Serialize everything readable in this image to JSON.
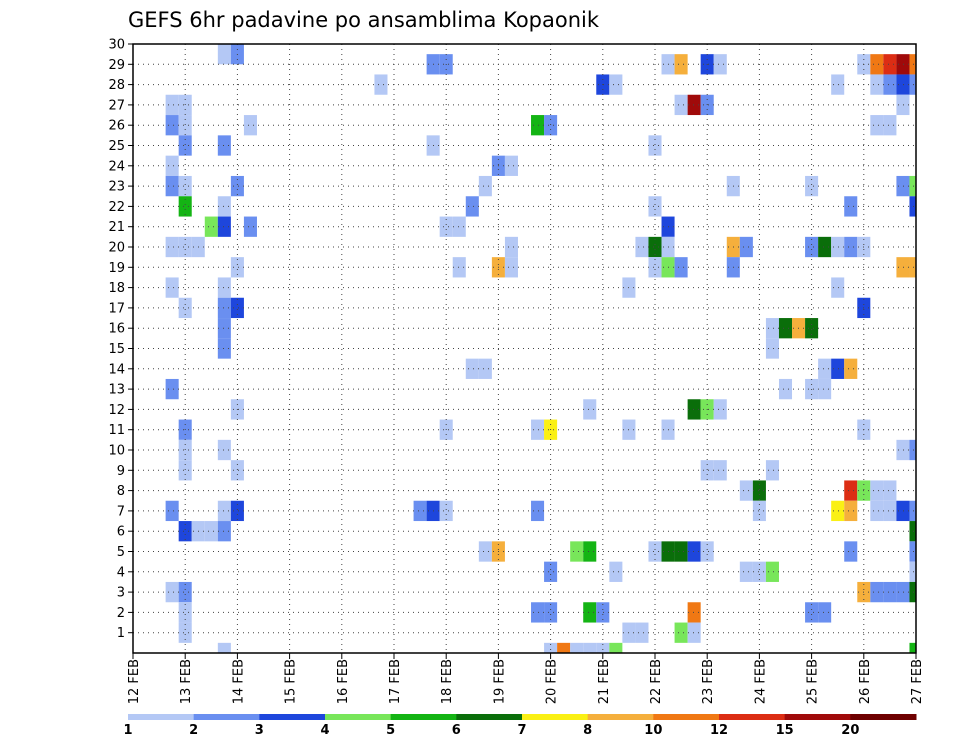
{
  "chart_data": {
    "type": "heatmap",
    "title": "GEFS 6hr padavine po ansamblima Kopaonik",
    "xlabel": "",
    "ylabel": "",
    "x_tick_labels": [
      "12 FEB",
      "13 FEB",
      "14 FEB",
      "15 FEB",
      "16 FEB",
      "17 FEB",
      "18 FEB",
      "19 FEB",
      "20 FEB",
      "21 FEB",
      "22 FEB",
      "23 FEB",
      "24 FEB",
      "25 FEB",
      "26 FEB",
      "27 FEB"
    ],
    "x_range_days": [
      12,
      27
    ],
    "y_tick_labels": [
      "1",
      "2",
      "3",
      "4",
      "5",
      "6",
      "7",
      "8",
      "9",
      "10",
      "11",
      "12",
      "13",
      "14",
      "15",
      "16",
      "17",
      "18",
      "19",
      "20",
      "21",
      "22",
      "23",
      "24",
      "25",
      "26",
      "27",
      "28",
      "29",
      "30"
    ],
    "y_range": [
      0,
      30
    ],
    "grid": true,
    "legend": {
      "placement": "bottom",
      "thresholds": [
        "1",
        "2",
        "3",
        "4",
        "5",
        "6",
        "7",
        "8",
        "10",
        "12",
        "15",
        "20"
      ],
      "colors": [
        "#b4c8f5",
        "#6a8ff0",
        "#1e46dc",
        "#78e65a",
        "#14b414",
        "#0a6e0a",
        "#faf014",
        "#f5af3c",
        "#f07814",
        "#dc2d14",
        "#a00a0a",
        "#6e0000"
      ]
    },
    "cells_description": "x = day of February (6-hour steps), y = ensemble member, level = legend color index (0 = 1-2 mm ... 11 = >20 mm)",
    "cells": [
      [
        13.75,
        30,
        0
      ],
      [
        14.0,
        30,
        1
      ],
      [
        17.75,
        29,
        1
      ],
      [
        18.0,
        29,
        1
      ],
      [
        22.25,
        29,
        0
      ],
      [
        22.5,
        29,
        7
      ],
      [
        23.0,
        29,
        2
      ],
      [
        23.25,
        29,
        0
      ],
      [
        26.0,
        29,
        0
      ],
      [
        26.25,
        29,
        8
      ],
      [
        26.5,
        29,
        9
      ],
      [
        26.75,
        29,
        10
      ],
      [
        27.0,
        29,
        8
      ],
      [
        16.75,
        28,
        0
      ],
      [
        21.0,
        28,
        2
      ],
      [
        21.25,
        28,
        0
      ],
      [
        25.5,
        28,
        0
      ],
      [
        26.25,
        28,
        0
      ],
      [
        26.5,
        28,
        1
      ],
      [
        26.75,
        28,
        2
      ],
      [
        27.0,
        28,
        1
      ],
      [
        12.75,
        27,
        0
      ],
      [
        13.0,
        27,
        0
      ],
      [
        22.5,
        27,
        0
      ],
      [
        22.75,
        27,
        10
      ],
      [
        23.0,
        27,
        1
      ],
      [
        26.75,
        27,
        0
      ],
      [
        12.75,
        26,
        1
      ],
      [
        13.0,
        26,
        0
      ],
      [
        14.25,
        26,
        0
      ],
      [
        19.75,
        26,
        4
      ],
      [
        20.0,
        26,
        1
      ],
      [
        26.25,
        26,
        0
      ],
      [
        26.5,
        26,
        0
      ],
      [
        13.0,
        25,
        1
      ],
      [
        13.75,
        25,
        1
      ],
      [
        17.75,
        25,
        0
      ],
      [
        22.0,
        25,
        0
      ],
      [
        12.75,
        24,
        0
      ],
      [
        19.0,
        24,
        1
      ],
      [
        19.25,
        24,
        0
      ],
      [
        12.75,
        23,
        1
      ],
      [
        13.0,
        23,
        0
      ],
      [
        14.0,
        23,
        1
      ],
      [
        18.75,
        23,
        0
      ],
      [
        23.5,
        23,
        0
      ],
      [
        25.0,
        23,
        0
      ],
      [
        26.75,
        23,
        1
      ],
      [
        27.0,
        23,
        3
      ],
      [
        13.0,
        22,
        4
      ],
      [
        13.75,
        22,
        0
      ],
      [
        18.5,
        22,
        1
      ],
      [
        22.0,
        22,
        0
      ],
      [
        25.75,
        22,
        1
      ],
      [
        27.0,
        22,
        2
      ],
      [
        13.5,
        21,
        3
      ],
      [
        13.75,
        21,
        2
      ],
      [
        14.25,
        21,
        1
      ],
      [
        18.0,
        21,
        0
      ],
      [
        18.25,
        21,
        0
      ],
      [
        22.25,
        21,
        2
      ],
      [
        12.75,
        20,
        0
      ],
      [
        13.0,
        20,
        0
      ],
      [
        13.25,
        20,
        0
      ],
      [
        19.25,
        20,
        0
      ],
      [
        21.75,
        20,
        0
      ],
      [
        22.0,
        20,
        5
      ],
      [
        22.25,
        20,
        0
      ],
      [
        23.5,
        20,
        7
      ],
      [
        23.75,
        20,
        1
      ],
      [
        25.0,
        20,
        1
      ],
      [
        25.25,
        20,
        5
      ],
      [
        25.5,
        20,
        0
      ],
      [
        25.75,
        20,
        1
      ],
      [
        26.0,
        20,
        0
      ],
      [
        14.0,
        19,
        0
      ],
      [
        18.25,
        19,
        0
      ],
      [
        19.0,
        19,
        7
      ],
      [
        19.25,
        19,
        0
      ],
      [
        22.0,
        19,
        0
      ],
      [
        22.25,
        19,
        3
      ],
      [
        22.5,
        19,
        1
      ],
      [
        23.5,
        19,
        1
      ],
      [
        26.75,
        19,
        7
      ],
      [
        27.0,
        19,
        7
      ],
      [
        12.75,
        18,
        0
      ],
      [
        13.75,
        18,
        0
      ],
      [
        21.5,
        18,
        0
      ],
      [
        25.5,
        18,
        0
      ],
      [
        13.0,
        17,
        0
      ],
      [
        13.75,
        17,
        1
      ],
      [
        14.0,
        17,
        2
      ],
      [
        26.0,
        17,
        2
      ],
      [
        13.75,
        16,
        1
      ],
      [
        24.25,
        16,
        0
      ],
      [
        24.5,
        16,
        5
      ],
      [
        24.75,
        16,
        7
      ],
      [
        25.0,
        16,
        5
      ],
      [
        13.75,
        15,
        1
      ],
      [
        24.25,
        15,
        0
      ],
      [
        18.5,
        14,
        0
      ],
      [
        18.75,
        14,
        0
      ],
      [
        25.25,
        14,
        0
      ],
      [
        25.5,
        14,
        2
      ],
      [
        25.75,
        14,
        7
      ],
      [
        12.75,
        13,
        1
      ],
      [
        24.5,
        13,
        0
      ],
      [
        25.0,
        13,
        0
      ],
      [
        25.25,
        13,
        0
      ],
      [
        14.0,
        12,
        0
      ],
      [
        20.75,
        12,
        0
      ],
      [
        22.75,
        12,
        5
      ],
      [
        23.0,
        12,
        3
      ],
      [
        23.25,
        12,
        0
      ],
      [
        13.0,
        11,
        1
      ],
      [
        18.0,
        11,
        0
      ],
      [
        19.75,
        11,
        0
      ],
      [
        20.0,
        11,
        6
      ],
      [
        21.5,
        11,
        0
      ],
      [
        22.25,
        11,
        0
      ],
      [
        26.0,
        11,
        0
      ],
      [
        13.0,
        10,
        0
      ],
      [
        13.75,
        10,
        0
      ],
      [
        26.75,
        10,
        0
      ],
      [
        27.0,
        10,
        1
      ],
      [
        13.0,
        9,
        0
      ],
      [
        14.0,
        9,
        0
      ],
      [
        23.0,
        9,
        0
      ],
      [
        23.25,
        9,
        0
      ],
      [
        24.25,
        9,
        0
      ],
      [
        23.75,
        8,
        0
      ],
      [
        24.0,
        8,
        5
      ],
      [
        25.75,
        8,
        9
      ],
      [
        26.0,
        8,
        3
      ],
      [
        26.25,
        8,
        0
      ],
      [
        26.5,
        8,
        0
      ],
      [
        12.75,
        7,
        1
      ],
      [
        13.75,
        7,
        0
      ],
      [
        14.0,
        7,
        2
      ],
      [
        17.5,
        7,
        1
      ],
      [
        17.75,
        7,
        2
      ],
      [
        18.0,
        7,
        0
      ],
      [
        19.75,
        7,
        1
      ],
      [
        24.0,
        7,
        0
      ],
      [
        25.5,
        7,
        6
      ],
      [
        25.75,
        7,
        7
      ],
      [
        26.25,
        7,
        0
      ],
      [
        26.5,
        7,
        0
      ],
      [
        26.75,
        7,
        2
      ],
      [
        27.0,
        7,
        1
      ],
      [
        13.0,
        6,
        2
      ],
      [
        13.25,
        6,
        0
      ],
      [
        13.5,
        6,
        0
      ],
      [
        13.75,
        6,
        1
      ],
      [
        27.0,
        6,
        5
      ],
      [
        18.75,
        5,
        0
      ],
      [
        19.0,
        5,
        7
      ],
      [
        20.5,
        5,
        3
      ],
      [
        20.75,
        5,
        4
      ],
      [
        22.0,
        5,
        0
      ],
      [
        22.25,
        5,
        5
      ],
      [
        22.5,
        5,
        5
      ],
      [
        22.75,
        5,
        2
      ],
      [
        23.0,
        5,
        0
      ],
      [
        25.75,
        5,
        1
      ],
      [
        27.0,
        5,
        1
      ],
      [
        20.0,
        4,
        1
      ],
      [
        21.25,
        4,
        0
      ],
      [
        23.75,
        4,
        0
      ],
      [
        24.0,
        4,
        0
      ],
      [
        24.25,
        4,
        3
      ],
      [
        27.0,
        4,
        0
      ],
      [
        12.75,
        3,
        0
      ],
      [
        13.0,
        3,
        1
      ],
      [
        26.0,
        3,
        7
      ],
      [
        26.25,
        3,
        1
      ],
      [
        26.5,
        3,
        1
      ],
      [
        26.75,
        3,
        1
      ],
      [
        27.0,
        3,
        5
      ],
      [
        13.0,
        2,
        0
      ],
      [
        19.75,
        2,
        1
      ],
      [
        20.0,
        2,
        1
      ],
      [
        20.75,
        2,
        4
      ],
      [
        21.0,
        2,
        1
      ],
      [
        22.75,
        2,
        8
      ],
      [
        25.0,
        2,
        1
      ],
      [
        25.25,
        2,
        1
      ],
      [
        13.0,
        1,
        0
      ],
      [
        21.5,
        1,
        0
      ],
      [
        21.75,
        1,
        0
      ],
      [
        22.5,
        1,
        3
      ],
      [
        22.75,
        1,
        0
      ],
      [
        13.75,
        0,
        0
      ],
      [
        20.0,
        0,
        0
      ],
      [
        20.25,
        0,
        8
      ],
      [
        20.5,
        0,
        0
      ],
      [
        20.75,
        0,
        0
      ],
      [
        21.0,
        0,
        0
      ],
      [
        21.25,
        0,
        3
      ],
      [
        27.0,
        0,
        4
      ]
    ]
  }
}
